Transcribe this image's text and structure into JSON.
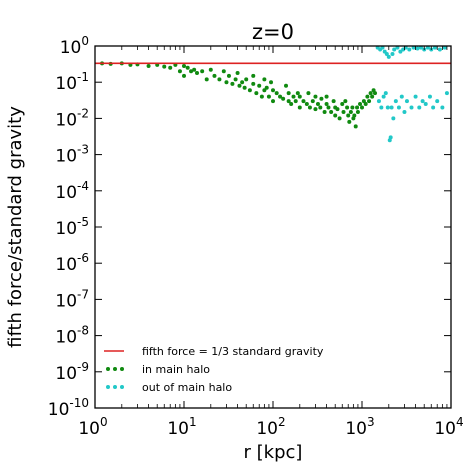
{
  "chart_data": {
    "type": "scatter",
    "title": "z=0",
    "xlabel": "r [kpc]",
    "ylabel": "fifth force/standard gravity",
    "x_scale": "log",
    "y_scale": "log",
    "xlim": [
      1,
      10000
    ],
    "ylim": [
      1e-10,
      1
    ],
    "x_ticks": [
      {
        "value": 1,
        "base": "10",
        "exp": "0"
      },
      {
        "value": 10,
        "base": "10",
        "exp": "1"
      },
      {
        "value": 100,
        "base": "10",
        "exp": "2"
      },
      {
        "value": 1000,
        "base": "10",
        "exp": "3"
      },
      {
        "value": 10000,
        "base": "10",
        "exp": "4"
      }
    ],
    "y_ticks": [
      {
        "value": 1,
        "base": "10",
        "exp": "0"
      },
      {
        "value": 0.1,
        "base": "10",
        "exp": "-1"
      },
      {
        "value": 0.01,
        "base": "10",
        "exp": "-2"
      },
      {
        "value": 0.001,
        "base": "10",
        "exp": "-3"
      },
      {
        "value": 0.0001,
        "base": "10",
        "exp": "-4"
      },
      {
        "value": 1e-05,
        "base": "10",
        "exp": "-5"
      },
      {
        "value": 1e-06,
        "base": "10",
        "exp": "-6"
      },
      {
        "value": 1e-07,
        "base": "10",
        "exp": "-7"
      },
      {
        "value": 1e-08,
        "base": "10",
        "exp": "-8"
      },
      {
        "value": 1e-09,
        "base": "10",
        "exp": "-9"
      },
      {
        "value": 1e-10,
        "base": "10",
        "exp": "-10"
      }
    ],
    "grid": false,
    "legend_position": "lower-left",
    "reference_line": {
      "name": "fifth force = 1/3 standard gravity",
      "y": 0.333,
      "color": "#dd2222"
    },
    "series": [
      {
        "name": "in main halo",
        "color": "#108a10",
        "x": [
          1.2,
          1.5,
          2,
          2.5,
          3,
          4,
          5,
          6,
          7,
          8,
          9,
          10,
          10,
          11,
          12,
          13,
          14,
          16,
          18,
          20,
          22,
          25,
          28,
          30,
          32,
          35,
          38,
          40,
          42,
          45,
          48,
          50,
          55,
          60,
          60,
          65,
          70,
          75,
          80,
          80,
          85,
          90,
          95,
          100,
          100,
          110,
          120,
          130,
          140,
          150,
          150,
          160,
          170,
          180,
          190,
          200,
          200,
          220,
          240,
          250,
          260,
          280,
          300,
          300,
          320,
          340,
          350,
          380,
          400,
          400,
          420,
          450,
          480,
          500,
          500,
          530,
          560,
          600,
          620,
          650,
          680,
          700,
          720,
          750,
          780,
          800,
          820,
          850,
          880,
          900,
          950,
          1000,
          1050,
          1100,
          1150,
          1200,
          1250,
          1300,
          1350,
          1400
        ],
        "y": [
          0.33,
          0.32,
          0.33,
          0.3,
          0.31,
          0.28,
          0.3,
          0.27,
          0.25,
          0.3,
          0.2,
          0.28,
          0.15,
          0.25,
          0.2,
          0.22,
          0.18,
          0.2,
          0.12,
          0.22,
          0.15,
          0.12,
          0.2,
          0.1,
          0.15,
          0.09,
          0.12,
          0.18,
          0.08,
          0.1,
          0.07,
          0.12,
          0.06,
          0.09,
          0.15,
          0.05,
          0.08,
          0.04,
          0.12,
          0.06,
          0.07,
          0.04,
          0.1,
          0.03,
          0.06,
          0.05,
          0.04,
          0.035,
          0.08,
          0.03,
          0.05,
          0.025,
          0.04,
          0.03,
          0.05,
          0.02,
          0.04,
          0.03,
          0.025,
          0.05,
          0.02,
          0.03,
          0.018,
          0.04,
          0.025,
          0.02,
          0.035,
          0.015,
          0.025,
          0.04,
          0.02,
          0.015,
          0.03,
          0.012,
          0.02,
          0.018,
          0.01,
          0.025,
          0.015,
          0.03,
          0.02,
          0.012,
          0.008,
          0.015,
          0.02,
          0.01,
          0.012,
          0.006,
          0.02,
          0.015,
          0.025,
          0.02,
          0.03,
          0.025,
          0.04,
          0.03,
          0.05,
          0.04,
          0.06,
          0.05
        ]
      },
      {
        "name": "out of main halo",
        "color": "#22c8c8",
        "x": [
          1500,
          1550,
          1600,
          1650,
          1700,
          1750,
          1800,
          1850,
          1900,
          1950,
          2000,
          2050,
          2100,
          2150,
          2200,
          2250,
          2300,
          2400,
          2500,
          2600,
          2700,
          2800,
          2900,
          3000,
          3100,
          3200,
          3400,
          3600,
          3800,
          4000,
          4200,
          4400,
          4600,
          4800,
          5000,
          5200,
          5500,
          5800,
          6000,
          6300,
          6600,
          7000,
          7500,
          8000,
          8500,
          9000
        ],
        "y": [
          0.9,
          0.03,
          0.8,
          0.02,
          0.9,
          0.04,
          0.7,
          0.05,
          0.6,
          0.02,
          0.5,
          0.0025,
          0.003,
          0.02,
          0.6,
          0.01,
          0.8,
          0.03,
          0.9,
          0.02,
          0.7,
          0.04,
          0.8,
          0.015,
          0.9,
          0.03,
          0.8,
          0.02,
          0.9,
          0.04,
          0.85,
          0.02,
          0.9,
          0.03,
          0.8,
          0.025,
          0.9,
          0.04,
          0.8,
          0.02,
          0.9,
          0.03,
          0.8,
          0.02,
          0.9,
          0.05
        ]
      }
    ]
  }
}
